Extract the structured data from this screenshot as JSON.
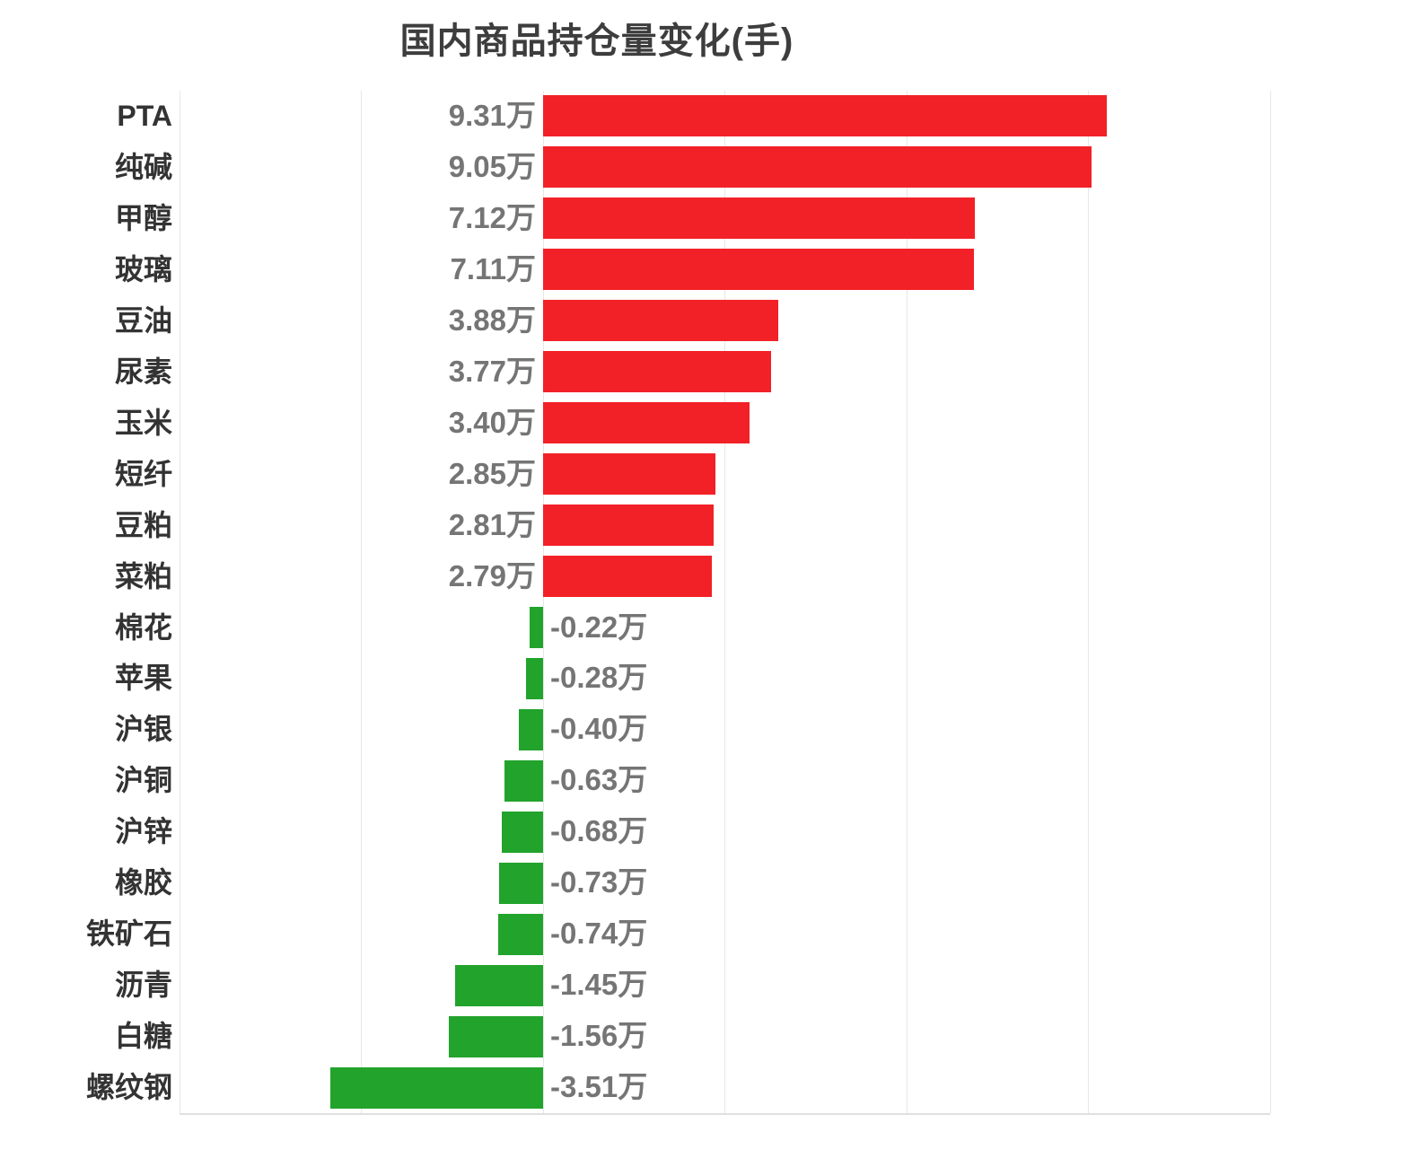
{
  "title": "国内商品持仓量变化(手)",
  "colors": {
    "positive_bar": "#f22127",
    "negative_bar": "#22a32c",
    "gridline": "#e7e7e7",
    "axis_line": "#e0e0e0",
    "title_text": "#3d3d3d",
    "category_text": "#333333",
    "value_text": "#757575",
    "background": "#ffffff"
  },
  "chart_data": {
    "type": "bar",
    "orientation": "horizontal",
    "title": "国内商品持仓量变化(手)",
    "value_unit": "万",
    "categories": [
      "PTA",
      "纯碱",
      "甲醇",
      "玻璃",
      "豆油",
      "尿素",
      "玉米",
      "短纤",
      "豆粕",
      "菜粕",
      "棉花",
      "苹果",
      "沪银",
      "沪铜",
      "沪锌",
      "橡胶",
      "铁矿石",
      "沥青",
      "白糖",
      "螺纹钢"
    ],
    "values": [
      9.31,
      9.05,
      7.12,
      7.11,
      3.88,
      3.77,
      3.4,
      2.85,
      2.81,
      2.79,
      -0.22,
      -0.28,
      -0.4,
      -0.63,
      -0.68,
      -0.73,
      -0.74,
      -1.45,
      -1.56,
      -3.51
    ],
    "value_labels": [
      "9.31万",
      "9.05万",
      "7.12万",
      "7.11万",
      "3.88万",
      "3.77万",
      "3.40万",
      "2.85万",
      "2.81万",
      "2.79万",
      "-0.22万",
      "-0.28万",
      "-0.40万",
      "-0.63万",
      "-0.68万",
      "-0.73万",
      "-0.74万",
      "-1.45万",
      "-1.56万",
      "-3.51万"
    ],
    "xlim": [
      -6,
      12
    ],
    "grid_interval": 3,
    "grid": true,
    "x_tick_labels_shown": false,
    "legend": "none"
  }
}
